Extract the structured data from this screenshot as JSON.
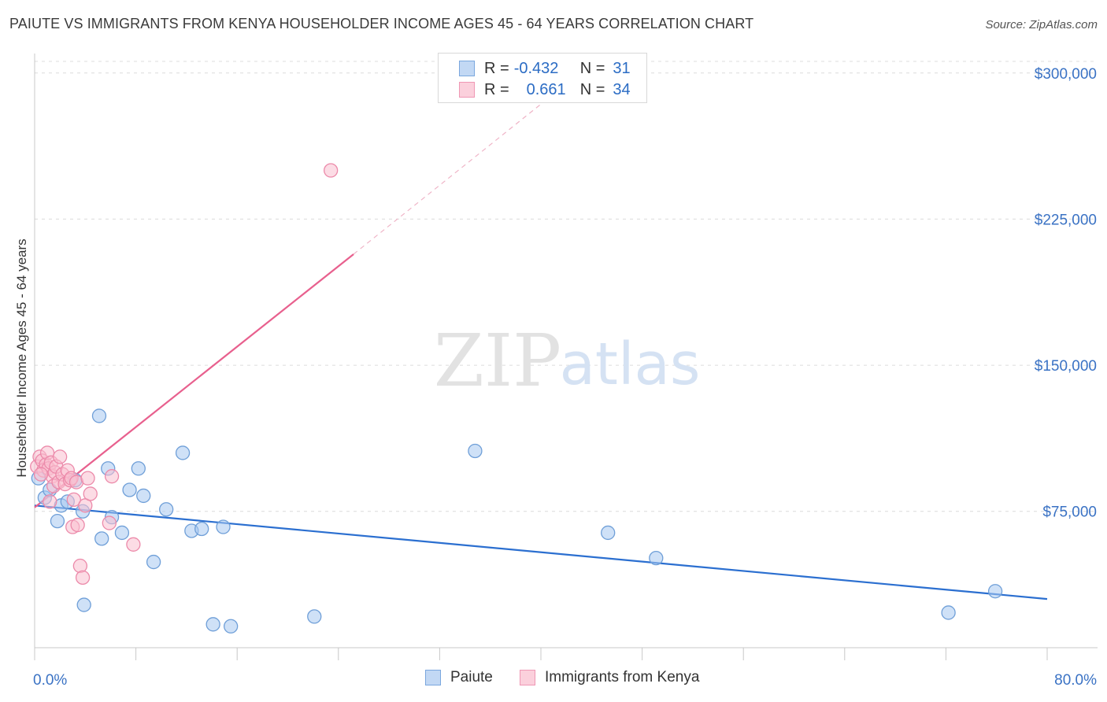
{
  "chart_data": {
    "type": "scatter",
    "title": "PAIUTE VS IMMIGRANTS FROM KENYA HOUSEHOLDER INCOME AGES 45 - 64 YEARS CORRELATION CHART",
    "source": "Source: ZipAtlas.com",
    "ylabel": "Householder Income Ages 45 - 64 years",
    "xlabel": "",
    "x_tick_labels": [
      "0.0%",
      "80.0%"
    ],
    "y_tick_labels": [
      "$300,000",
      "$225,000",
      "$150,000",
      "$75,000"
    ],
    "y_ticks": [
      300000,
      225000,
      150000,
      75000
    ],
    "xlim": [
      0,
      80
    ],
    "ylim": [
      5000,
      310000
    ],
    "watermark": {
      "zip": "ZIP",
      "atlas": "atlas"
    },
    "legend": {
      "rows": [
        {
          "r_label": "R =",
          "r_value": "-0.432",
          "n_label": "N =",
          "n_value": "31"
        },
        {
          "r_label": "R =",
          "r_value": "0.661",
          "n_label": "N =",
          "n_value": "34"
        }
      ]
    },
    "series": [
      {
        "name": "Paiute",
        "color": "#a8c8f0",
        "stroke": "#6f9fd8",
        "line_color": "#2b6fd0",
        "trend": {
          "x": [
            0,
            80
          ],
          "y": [
            78000,
            30000
          ]
        },
        "points": [
          [
            0.3,
            92000
          ],
          [
            0.8,
            82000
          ],
          [
            1.2,
            86000
          ],
          [
            1.8,
            70000
          ],
          [
            2.1,
            78000
          ],
          [
            2.6,
            80000
          ],
          [
            3.2,
            91000
          ],
          [
            3.8,
            75000
          ],
          [
            3.9,
            27000
          ],
          [
            5.1,
            124000
          ],
          [
            5.3,
            61000
          ],
          [
            5.8,
            97000
          ],
          [
            6.1,
            72000
          ],
          [
            6.9,
            64000
          ],
          [
            7.5,
            86000
          ],
          [
            8.2,
            97000
          ],
          [
            8.6,
            83000
          ],
          [
            9.4,
            49000
          ],
          [
            10.4,
            76000
          ],
          [
            11.7,
            105000
          ],
          [
            12.4,
            65000
          ],
          [
            13.2,
            66000
          ],
          [
            14.1,
            17000
          ],
          [
            14.9,
            67000
          ],
          [
            15.5,
            16000
          ],
          [
            22.1,
            21000
          ],
          [
            34.8,
            106000
          ],
          [
            45.3,
            64000
          ],
          [
            49.1,
            51000
          ],
          [
            72.2,
            23000
          ],
          [
            75.9,
            34000
          ]
        ]
      },
      {
        "name": "Immigrants from Kenya",
        "color": "#f9bfd0",
        "stroke": "#ec8aaa",
        "line_color": "#e8608e",
        "trend": {
          "x": [
            0,
            25.2
          ],
          "y": [
            77000,
            207000
          ]
        },
        "trend_dashed": {
          "x": [
            25.2,
            40
          ],
          "y": [
            207000,
            284000
          ]
        },
        "points": [
          [
            0.2,
            98000
          ],
          [
            0.4,
            103000
          ],
          [
            0.6,
            101000
          ],
          [
            0.7,
            96000
          ],
          [
            0.9,
            99000
          ],
          [
            1.0,
            105000
          ],
          [
            1.1,
            97000
          ],
          [
            1.3,
            100000
          ],
          [
            1.4,
            93000
          ],
          [
            1.5,
            88000
          ],
          [
            1.6,
            95000
          ],
          [
            1.7,
            98000
          ],
          [
            1.9,
            90000
          ],
          [
            2.0,
            103000
          ],
          [
            2.2,
            94000
          ],
          [
            2.4,
            89000
          ],
          [
            2.6,
            96000
          ],
          [
            2.8,
            91000
          ],
          [
            2.9,
            92000
          ],
          [
            3.1,
            81000
          ],
          [
            3.0,
            67000
          ],
          [
            3.3,
            90000
          ],
          [
            3.4,
            68000
          ],
          [
            3.6,
            47000
          ],
          [
            3.8,
            41000
          ],
          [
            4.0,
            78000
          ],
          [
            4.2,
            92000
          ],
          [
            4.4,
            84000
          ],
          [
            6.1,
            93000
          ],
          [
            5.9,
            69000
          ],
          [
            7.8,
            58000
          ],
          [
            0.5,
            94000
          ],
          [
            1.2,
            80000
          ],
          [
            23.4,
            250000
          ]
        ]
      }
    ]
  }
}
